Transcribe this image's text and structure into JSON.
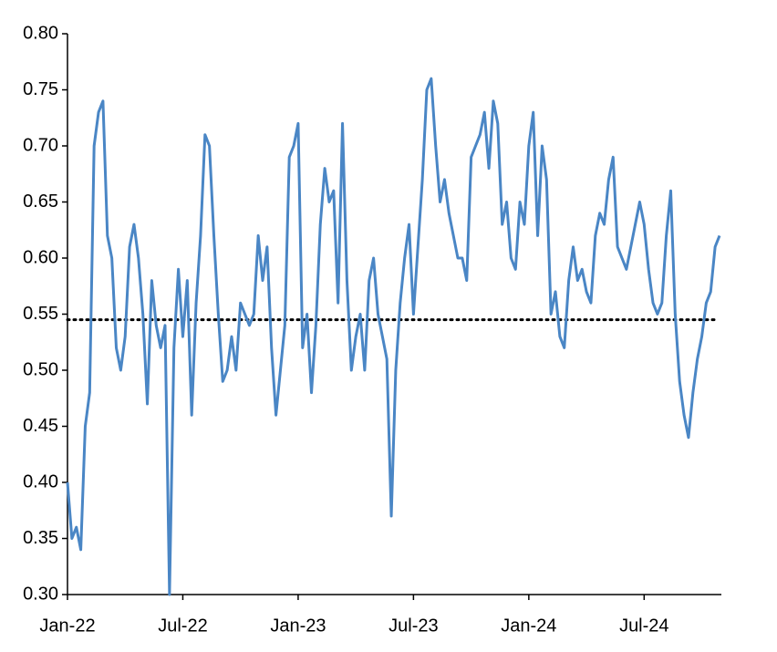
{
  "chart_data": {
    "type": "line",
    "categories": [
      "Jan-22",
      null,
      null,
      null,
      null,
      null,
      null,
      null,
      null,
      null,
      null,
      null,
      null,
      null,
      null,
      null,
      null,
      null,
      null,
      null,
      null,
      null,
      null,
      null,
      null,
      null,
      "Jul-22",
      null,
      null,
      null,
      null,
      null,
      null,
      null,
      null,
      null,
      null,
      null,
      null,
      null,
      null,
      null,
      null,
      null,
      null,
      null,
      null,
      null,
      null,
      null,
      null,
      null,
      "Jan-23",
      null,
      null,
      null,
      null,
      null,
      null,
      null,
      null,
      null,
      null,
      null,
      null,
      null,
      null,
      null,
      null,
      null,
      null,
      null,
      null,
      null,
      null,
      null,
      null,
      null,
      "Jul-23",
      null,
      null,
      null,
      null,
      null,
      null,
      null,
      null,
      null,
      null,
      null,
      null,
      null,
      null,
      null,
      null,
      null,
      null,
      null,
      null,
      null,
      null,
      null,
      null,
      null,
      "Jan-24",
      null,
      null,
      null,
      null,
      null,
      null,
      null,
      null,
      null,
      null,
      null,
      null,
      null,
      null,
      null,
      null,
      null,
      null,
      null,
      null,
      null,
      null,
      null,
      null,
      null,
      "Jul-24",
      null,
      null,
      null,
      null,
      null,
      null,
      null,
      null,
      null,
      null,
      null,
      null,
      null,
      null,
      null,
      null,
      null
    ],
    "values": [
      0.4,
      0.35,
      0.36,
      0.34,
      0.45,
      0.48,
      0.7,
      0.73,
      0.74,
      0.62,
      0.6,
      0.52,
      0.5,
      0.53,
      0.61,
      0.63,
      0.6,
      0.55,
      0.47,
      0.58,
      0.54,
      0.52,
      0.54,
      0.3,
      0.52,
      0.59,
      0.53,
      0.58,
      0.46,
      0.56,
      0.62,
      0.71,
      0.7,
      0.62,
      0.55,
      0.49,
      0.5,
      0.53,
      0.5,
      0.56,
      0.55,
      0.54,
      0.55,
      0.62,
      0.58,
      0.61,
      0.52,
      0.46,
      0.5,
      0.54,
      0.69,
      0.7,
      0.72,
      0.52,
      0.55,
      0.48,
      0.54,
      0.63,
      0.68,
      0.65,
      0.66,
      0.56,
      0.72,
      0.58,
      0.5,
      0.53,
      0.55,
      0.5,
      0.58,
      0.6,
      0.55,
      0.53,
      0.51,
      0.37,
      0.5,
      0.56,
      0.6,
      0.63,
      0.55,
      0.61,
      0.67,
      0.75,
      0.76,
      0.7,
      0.65,
      0.67,
      0.64,
      0.62,
      0.6,
      0.6,
      0.58,
      0.69,
      0.7,
      0.71,
      0.73,
      0.68,
      0.74,
      0.72,
      0.63,
      0.65,
      0.6,
      0.59,
      0.65,
      0.63,
      0.7,
      0.73,
      0.62,
      0.7,
      0.67,
      0.55,
      0.57,
      0.53,
      0.52,
      0.58,
      0.61,
      0.58,
      0.59,
      0.57,
      0.56,
      0.62,
      0.64,
      0.63,
      0.67,
      0.69,
      0.61,
      0.6,
      0.59,
      0.61,
      0.63,
      0.65,
      0.63,
      0.59,
      0.56,
      0.55,
      0.56,
      0.62,
      0.66,
      0.55,
      0.49,
      0.46,
      0.44,
      0.48,
      0.51,
      0.53,
      0.56,
      0.57,
      0.61,
      0.62
    ],
    "color": "#4a86c5",
    "hline": 0.545,
    "ylim": [
      0.3,
      0.8
    ],
    "yticks": [
      {
        "value": 0.3,
        "label": "0.30"
      },
      0.35,
      {
        "value": 0.4,
        "label": "0.40"
      },
      0.45,
      {
        "value": 0.5,
        "label": "0.50"
      },
      0.55,
      {
        "value": 0.6,
        "label": "0.60"
      },
      0.65,
      {
        "value": 0.7,
        "label": "0.70"
      },
      0.75,
      {
        "value": 0.8,
        "label": "0.80"
      }
    ]
  }
}
